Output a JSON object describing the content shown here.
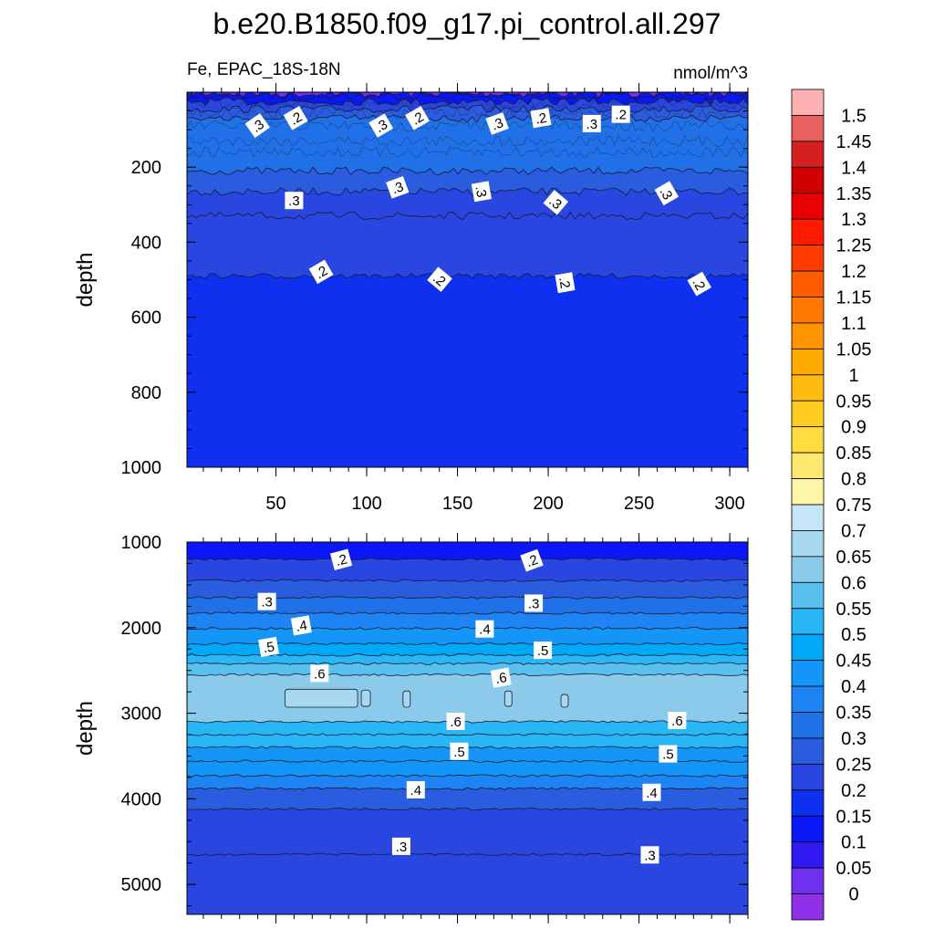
{
  "title": "b.e20.B1850.f09_g17.pi_control.all.297",
  "left_subtitle": "Fe, EPAC_18S-18N",
  "right_subtitle": "nmol/m^3",
  "colorbar": {
    "labels": [
      "1.5",
      "1.45",
      "1.4",
      "1.35",
      "1.3",
      "1.25",
      "1.2",
      "1.15",
      "1.1",
      "1.05",
      "1",
      "0.95",
      "0.9",
      "0.85",
      "0.8",
      "0.75",
      "0.7",
      "0.65",
      "0.6",
      "0.55",
      "0.5",
      "0.45",
      "0.4",
      "0.35",
      "0.3",
      "0.25",
      "0.2",
      "0.15",
      "0.1",
      "0.05",
      "0"
    ],
    "colors": [
      "#ffb0b0",
      "#e86060",
      "#d42020",
      "#d00000",
      "#ea0000",
      "#ff1a00",
      "#ff3c00",
      "#ff5c00",
      "#ff7800",
      "#ff9400",
      "#ffaa00",
      "#ffbb10",
      "#ffcc22",
      "#ffdd40",
      "#ffe870",
      "#fff5a8",
      "#c4e6f6",
      "#a8d8f0",
      "#8ccaec",
      "#5ac0ee",
      "#28b6f6",
      "#00a8f8",
      "#1496f8",
      "#1e84f4",
      "#2070e8",
      "#2a5ce0",
      "#2a46e0",
      "#1030f0",
      "#0a18f8",
      "#3018f0",
      "#7030f0",
      "#9030e8"
    ]
  },
  "chart_data": [
    {
      "type": "heatmap",
      "subtype": "contour",
      "panel": "top",
      "ylabel": "depth",
      "xlabel": "",
      "xlim": [
        1,
        310
      ],
      "ylim": [
        1000,
        0
      ],
      "x_ticks": [
        50,
        100,
        150,
        200,
        250,
        300
      ],
      "y_ticks": [
        200,
        400,
        600,
        800,
        1000
      ],
      "contour_lines": [
        {
          "level": 0.1,
          "depth": 5
        },
        {
          "level": 0.15,
          "depth": 10
        },
        {
          "level": 0.2,
          "depth": 25
        },
        {
          "level": 0.25,
          "depth": 45
        },
        {
          "level": 0.3,
          "depth": 70
        },
        {
          "level": 0.35,
          "depth": 210
        },
        {
          "level": 0.3,
          "depth": 265
        },
        {
          "level": 0.25,
          "depth": 330
        },
        {
          "level": 0.2,
          "depth": 490
        }
      ],
      "contour_labels": [
        {
          "text": ".3",
          "x": 40,
          "y": 90,
          "rot": -35
        },
        {
          "text": ".2",
          "x": 61,
          "y": 70,
          "rot": -30
        },
        {
          "text": ".3",
          "x": 108,
          "y": 90,
          "rot": -30
        },
        {
          "text": ".2",
          "x": 128,
          "y": 70,
          "rot": -30
        },
        {
          "text": ".3",
          "x": 172,
          "y": 85,
          "rot": -20
        },
        {
          "text": ".2",
          "x": 196,
          "y": 70,
          "rot": -10
        },
        {
          "text": ".3",
          "x": 224,
          "y": 85,
          "rot": 0
        },
        {
          "text": ".2",
          "x": 240,
          "y": 60,
          "rot": 0
        },
        {
          "text": ".3",
          "x": 60,
          "y": 290,
          "rot": 0
        },
        {
          "text": ".3",
          "x": 117,
          "y": 255,
          "rot": -20
        },
        {
          "text": ".3",
          "x": 163,
          "y": 265,
          "rot": 80
        },
        {
          "text": ".3",
          "x": 204,
          "y": 295,
          "rot": 40
        },
        {
          "text": ".3",
          "x": 265,
          "y": 270,
          "rot": 60
        },
        {
          "text": ".2",
          "x": 75,
          "y": 480,
          "rot": -30
        },
        {
          "text": ".2",
          "x": 140,
          "y": 500,
          "rot": 40
        },
        {
          "text": ".2",
          "x": 209,
          "y": 508,
          "rot": 80
        },
        {
          "text": ".2",
          "x": 283,
          "y": 512,
          "rot": 60
        }
      ]
    },
    {
      "type": "heatmap",
      "subtype": "contour",
      "panel": "bottom",
      "ylabel": "depth",
      "xlabel": "",
      "xlim": [
        1,
        310
      ],
      "ylim": [
        5350,
        1000
      ],
      "x_ticks": [
        50,
        100,
        150,
        200,
        250,
        300
      ],
      "y_ticks": [
        1000,
        2000,
        3000,
        4000,
        5000
      ],
      "contour_lines": [
        {
          "level": 0.2,
          "depth": 1200
        },
        {
          "level": 0.25,
          "depth": 1450
        },
        {
          "level": 0.3,
          "depth": 1650
        },
        {
          "level": 0.35,
          "depth": 1830
        },
        {
          "level": 0.4,
          "depth": 2010
        },
        {
          "level": 0.45,
          "depth": 2190
        },
        {
          "level": 0.5,
          "depth": 2320
        },
        {
          "level": 0.55,
          "depth": 2420
        },
        {
          "level": 0.6,
          "depth": 2550
        },
        {
          "level": 0.6,
          "depth": 3100
        },
        {
          "level": 0.55,
          "depth": 3250
        },
        {
          "level": 0.5,
          "depth": 3400
        },
        {
          "level": 0.45,
          "depth": 3560
        },
        {
          "level": 0.4,
          "depth": 3730
        },
        {
          "level": 0.35,
          "depth": 3880
        },
        {
          "level": 0.3,
          "depth": 4120
        },
        {
          "level": 0.25,
          "depth": 4650
        }
      ],
      "contour_labels": [
        {
          "text": ".2",
          "x": 86,
          "y": 1210,
          "rot": -15
        },
        {
          "text": ".2",
          "x": 191,
          "y": 1220,
          "rot": -20
        },
        {
          "text": ".3",
          "x": 45,
          "y": 1700,
          "rot": 0
        },
        {
          "text": ".3",
          "x": 192,
          "y": 1720,
          "rot": 0
        },
        {
          "text": ".4",
          "x": 64,
          "y": 1980,
          "rot": -10
        },
        {
          "text": ".4",
          "x": 165,
          "y": 2020,
          "rot": 0
        },
        {
          "text": ".5",
          "x": 46,
          "y": 2230,
          "rot": -10
        },
        {
          "text": ".5",
          "x": 197,
          "y": 2270,
          "rot": 0
        },
        {
          "text": ".6",
          "x": 74,
          "y": 2540,
          "rot": 0
        },
        {
          "text": ".6",
          "x": 174,
          "y": 2590,
          "rot": -10
        },
        {
          "text": ".6",
          "x": 149,
          "y": 3100,
          "rot": 0
        },
        {
          "text": ".6",
          "x": 271,
          "y": 3090,
          "rot": 0
        },
        {
          "text": ".5",
          "x": 151,
          "y": 3450,
          "rot": 0
        },
        {
          "text": ".5",
          "x": 266,
          "y": 3480,
          "rot": 0
        },
        {
          "text": ".4",
          "x": 127,
          "y": 3900,
          "rot": 0
        },
        {
          "text": ".4",
          "x": 257,
          "y": 3930,
          "rot": 0
        },
        {
          "text": ".3",
          "x": 119,
          "y": 4560,
          "rot": 0
        },
        {
          "text": ".3",
          "x": 256,
          "y": 4660,
          "rot": 0
        }
      ]
    }
  ]
}
